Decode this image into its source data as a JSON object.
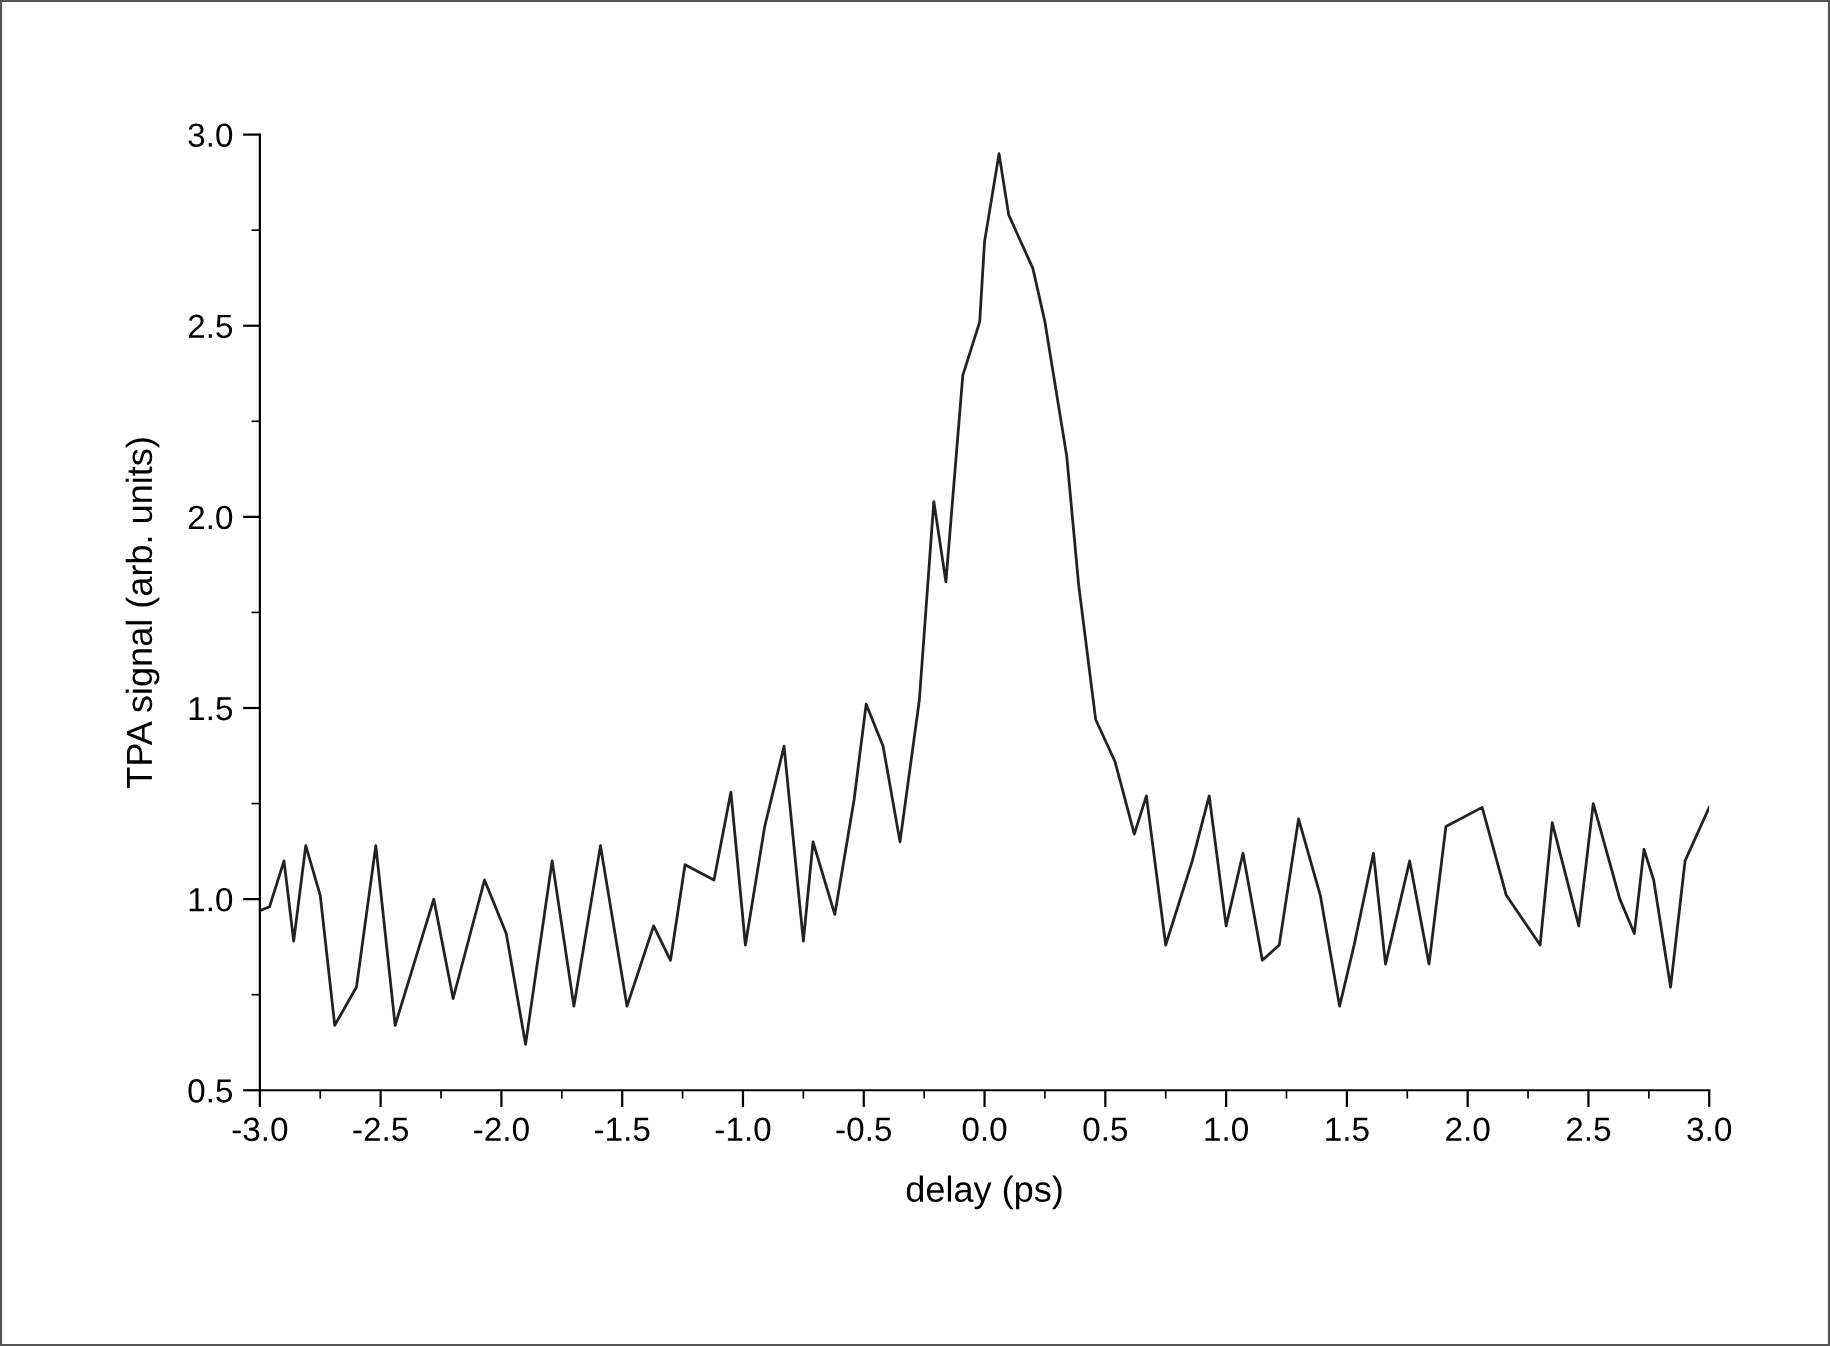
{
  "chart_data": {
    "type": "line",
    "xlabel": "delay (ps)",
    "ylabel": "TPA signal (arb. units)",
    "xlim": [
      -3.0,
      3.0
    ],
    "ylim": [
      0.5,
      3.0
    ],
    "xticks": [
      {
        "value": -3,
        "label": "-3.0"
      },
      -2.5,
      {
        "value": -2,
        "label": "-2.0"
      },
      -1.5,
      {
        "value": -1,
        "label": "-1.0"
      },
      -0.5,
      {
        "value": 0,
        "label": "0.0"
      },
      0.5,
      {
        "value": 1,
        "label": "1.0"
      },
      1.5,
      {
        "value": 2,
        "label": "2.0"
      },
      2.5,
      {
        "value": 3,
        "label": "3.0"
      }
    ],
    "yticks": [
      0.5,
      {
        "value": 1,
        "label": "1.0"
      },
      1.5,
      {
        "value": 2,
        "label": "2.0"
      },
      2.5,
      {
        "value": 3,
        "label": "3.0"
      }
    ],
    "series": [
      {
        "color": "#222222",
        "x": [
          -3.0,
          -2.96,
          -2.9,
          -2.86,
          -2.81,
          -2.75,
          -2.69,
          -2.6,
          -2.52,
          -2.44,
          -2.28,
          -2.2,
          -2.07,
          -1.98,
          -1.9,
          -1.79,
          -1.7,
          -1.59,
          -1.48,
          -1.37,
          -1.3,
          -1.24,
          -1.12,
          -1.05,
          -0.99,
          -0.91,
          -0.83,
          -0.75,
          -0.71,
          -0.62,
          -0.54,
          -0.49,
          -0.42,
          -0.35,
          -0.27,
          -0.21,
          -0.16,
          -0.09,
          -0.02,
          0.0,
          0.06,
          0.1,
          0.2,
          0.25,
          0.34,
          0.39,
          0.46,
          0.54,
          0.62,
          0.67,
          0.75,
          0.86,
          0.93,
          1.0,
          1.07,
          1.15,
          1.22,
          1.3,
          1.39,
          1.47,
          1.53,
          1.61,
          1.66,
          1.76,
          1.84,
          1.91,
          2.06,
          2.16,
          2.3,
          2.35,
          2.46,
          2.52,
          2.63,
          2.69,
          2.73,
          2.77,
          2.84,
          2.9,
          3.0
        ],
        "values": [
          0.97,
          0.98,
          1.1,
          0.89,
          1.14,
          1.01,
          0.67,
          0.77,
          1.14,
          0.67,
          1.0,
          0.74,
          1.05,
          0.91,
          0.62,
          1.1,
          0.72,
          1.14,
          0.72,
          0.93,
          0.84,
          1.09,
          1.05,
          1.28,
          0.88,
          1.19,
          1.4,
          0.89,
          1.15,
          0.96,
          1.26,
          1.51,
          1.4,
          1.15,
          1.52,
          2.04,
          1.83,
          2.37,
          2.51,
          2.72,
          2.95,
          2.79,
          2.65,
          2.51,
          2.16,
          1.82,
          1.47,
          1.36,
          1.17,
          1.27,
          0.88,
          1.1,
          1.27,
          0.93,
          1.12,
          0.84,
          0.88,
          1.21,
          1.01,
          0.72,
          0.88,
          1.12,
          0.83,
          1.1,
          0.83,
          1.19,
          1.24,
          1.01,
          0.88,
          1.2,
          0.93,
          1.25,
          1.0,
          0.91,
          1.13,
          1.05,
          0.77,
          1.1,
          1.24
        ]
      }
    ]
  }
}
